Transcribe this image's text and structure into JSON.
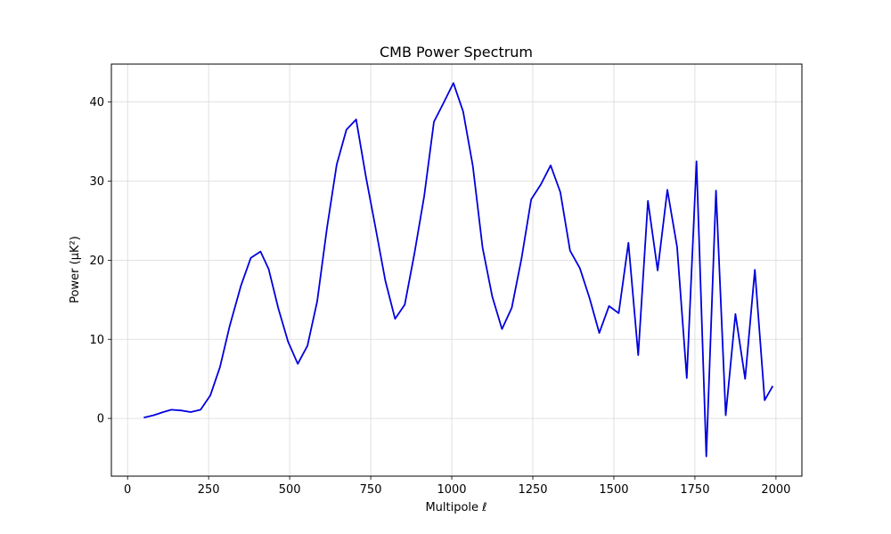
{
  "chart_data": {
    "type": "line",
    "title": "CMB Power Spectrum",
    "xlabel": "Multipole ℓ",
    "ylabel": "Power (μK²)",
    "xlim": [
      -50,
      2080
    ],
    "ylim": [
      -7.3,
      44.8
    ],
    "xticks": [
      0,
      250,
      500,
      750,
      1000,
      1250,
      1500,
      1750,
      2000
    ],
    "yticks": [
      0,
      10,
      20,
      30,
      40
    ],
    "grid": true,
    "color": "#0000dd",
    "series": [
      {
        "x": [
          50,
          80,
          110,
          135,
          165,
          195,
          225,
          255,
          285,
          315,
          350,
          380,
          410,
          435,
          465,
          495,
          525,
          555,
          585,
          615,
          645,
          675,
          705,
          735,
          765,
          795,
          825,
          855,
          885,
          915,
          945,
          975,
          1005,
          1035,
          1065,
          1095,
          1125,
          1155,
          1185,
          1215,
          1245,
          1275,
          1305,
          1335,
          1365,
          1395,
          1425,
          1455,
          1485,
          1515,
          1545,
          1575,
          1605,
          1635,
          1665,
          1695,
          1725,
          1755,
          1785,
          1815,
          1845,
          1875,
          1905,
          1935,
          1965,
          1990
        ],
        "values": [
          0.1,
          0.4,
          0.8,
          1.1,
          1.0,
          0.8,
          1.1,
          2.9,
          6.5,
          11.7,
          16.8,
          20.3,
          21.1,
          18.9,
          13.9,
          9.7,
          6.9,
          9.2,
          14.8,
          24.1,
          32.1,
          36.5,
          37.8,
          30.6,
          24.1,
          17.4,
          12.6,
          14.4,
          20.9,
          28.1,
          37.5,
          39.9,
          42.4,
          38.8,
          31.9,
          21.6,
          15.4,
          11.3,
          14.0,
          20.2,
          27.7,
          29.6,
          32.0,
          28.6,
          21.2,
          19.0,
          15.2,
          10.8,
          14.2,
          13.3,
          22.2,
          8.0,
          27.5,
          18.7,
          28.9,
          21.7,
          5.1,
          32.5,
          -4.8,
          28.8,
          0.4,
          13.2,
          5.0,
          18.8,
          2.3,
          4.1
        ]
      }
    ]
  }
}
